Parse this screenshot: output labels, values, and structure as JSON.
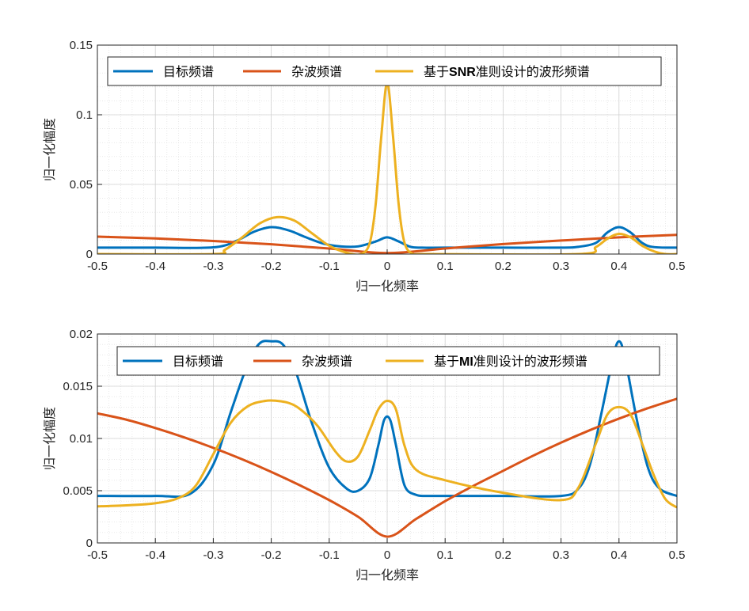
{
  "chart_data": [
    {
      "type": "line",
      "xlabel": "归一化频率",
      "ylabel": "归一化幅度",
      "xlim": [
        -0.5,
        0.5
      ],
      "ylim": [
        0,
        0.15
      ],
      "xticks": [
        "-0.5",
        "-0.4",
        "-0.3",
        "-0.2",
        "-0.1",
        "0",
        "0.1",
        "0.2",
        "0.3",
        "0.4",
        "0.5"
      ],
      "yticks": [
        "0",
        "0.05",
        "0.1",
        "0.15"
      ],
      "grid": true,
      "legend_position": "top",
      "series": [
        {
          "name": "目标频谱",
          "color": "#0072BD",
          "x": [
            -0.5,
            -0.4,
            -0.3,
            -0.26,
            -0.23,
            -0.2,
            -0.17,
            -0.14,
            -0.11,
            -0.08,
            -0.05,
            -0.02,
            0.0,
            0.02,
            0.04,
            0.06,
            0.1,
            0.2,
            0.3,
            0.33,
            0.36,
            0.38,
            0.4,
            0.42,
            0.44,
            0.46,
            0.5
          ],
          "y": [
            0.0046,
            0.0046,
            0.0048,
            0.0095,
            0.016,
            0.0193,
            0.017,
            0.012,
            0.0075,
            0.0055,
            0.0055,
            0.009,
            0.012,
            0.009,
            0.0052,
            0.0046,
            0.0046,
            0.0046,
            0.0046,
            0.0052,
            0.008,
            0.0155,
            0.0193,
            0.0155,
            0.008,
            0.005,
            0.0046
          ]
        },
        {
          "name": "杂波频谱",
          "color": "#D95319",
          "x": [
            -0.5,
            -0.4,
            -0.3,
            -0.2,
            -0.1,
            0.0,
            0.1,
            0.2,
            0.3,
            0.4,
            0.5
          ],
          "y": [
            0.0125,
            0.0112,
            0.0094,
            0.007,
            0.004,
            0.0007,
            0.004,
            0.0072,
            0.0097,
            0.012,
            0.0138
          ]
        },
        {
          "name": "基于SNR准则设计的波形频谱",
          "label_prefix": "基于",
          "label_bold": "SNR",
          "label_suffix": "准则设计的波形频谱",
          "color": "#EDB120",
          "x": [
            -0.5,
            -0.3,
            -0.28,
            -0.25,
            -0.22,
            -0.19,
            -0.16,
            -0.13,
            -0.1,
            -0.07,
            -0.045,
            -0.03,
            -0.02,
            -0.01,
            0.0,
            0.01,
            0.02,
            0.03,
            0.045,
            0.07,
            0.33,
            0.36,
            0.38,
            0.4,
            0.42,
            0.44,
            0.46,
            0.48,
            0.5
          ],
          "y": [
            0.0,
            0.0,
            0.003,
            0.012,
            0.022,
            0.0265,
            0.024,
            0.015,
            0.006,
            0.001,
            0.0,
            0.008,
            0.035,
            0.085,
            0.123,
            0.085,
            0.035,
            0.008,
            0.0,
            0.0,
            0.0,
            0.005,
            0.011,
            0.0145,
            0.012,
            0.006,
            0.002,
            0.0,
            0.0
          ]
        }
      ]
    },
    {
      "type": "line",
      "xlabel": "归一化频率",
      "ylabel": "归一化幅度",
      "xlim": [
        -0.5,
        0.5
      ],
      "ylim": [
        0,
        0.02
      ],
      "xticks": [
        "-0.5",
        "-0.4",
        "-0.3",
        "-0.2",
        "-0.1",
        "0",
        "0.1",
        "0.2",
        "0.3",
        "0.4",
        "0.5"
      ],
      "yticks": [
        "0",
        "0.005",
        "0.01",
        "0.015",
        "0.02"
      ],
      "grid": true,
      "legend_position": "top",
      "series": [
        {
          "name": "目标频谱",
          "color": "#0072BD",
          "x": [
            -0.5,
            -0.4,
            -0.34,
            -0.3,
            -0.27,
            -0.24,
            -0.22,
            -0.2,
            -0.18,
            -0.16,
            -0.13,
            -0.1,
            -0.07,
            -0.05,
            -0.03,
            -0.015,
            -0.005,
            0.005,
            0.015,
            0.03,
            0.05,
            0.07,
            0.1,
            0.2,
            0.3,
            0.33,
            0.35,
            0.37,
            0.39,
            0.4,
            0.41,
            0.43,
            0.45,
            0.47,
            0.5
          ],
          "y": [
            0.0045,
            0.0045,
            0.0047,
            0.0075,
            0.0125,
            0.0172,
            0.0191,
            0.0193,
            0.019,
            0.0168,
            0.0115,
            0.0072,
            0.0052,
            0.005,
            0.0062,
            0.0094,
            0.0118,
            0.0118,
            0.0094,
            0.0055,
            0.0046,
            0.0045,
            0.0045,
            0.0045,
            0.0045,
            0.0052,
            0.0075,
            0.0125,
            0.0178,
            0.0193,
            0.0178,
            0.012,
            0.0072,
            0.0052,
            0.0045
          ]
        },
        {
          "name": "杂波频谱",
          "color": "#D95319",
          "x": [
            -0.5,
            -0.45,
            -0.4,
            -0.35,
            -0.3,
            -0.25,
            -0.2,
            -0.15,
            -0.1,
            -0.05,
            0.0,
            0.05,
            0.1,
            0.15,
            0.2,
            0.25,
            0.3,
            0.35,
            0.4,
            0.45,
            0.5
          ],
          "y": [
            0.0124,
            0.0118,
            0.011,
            0.0101,
            0.0091,
            0.008,
            0.0068,
            0.0055,
            0.0041,
            0.0025,
            0.0006,
            0.0023,
            0.004,
            0.0055,
            0.0069,
            0.0083,
            0.0096,
            0.0108,
            0.0119,
            0.0129,
            0.0138
          ]
        },
        {
          "name": "基于MI准则设计的波形频谱",
          "label_prefix": "基于",
          "label_bold": "MI",
          "label_suffix": "准则设计的波形频谱",
          "color": "#EDB120",
          "x": [
            -0.5,
            -0.45,
            -0.4,
            -0.36,
            -0.33,
            -0.3,
            -0.27,
            -0.24,
            -0.21,
            -0.19,
            -0.17,
            -0.15,
            -0.12,
            -0.09,
            -0.07,
            -0.05,
            -0.03,
            -0.015,
            0.0,
            0.015,
            0.03,
            0.05,
            0.1,
            0.2,
            0.3,
            0.33,
            0.36,
            0.38,
            0.4,
            0.42,
            0.44,
            0.46,
            0.48,
            0.5
          ],
          "y": [
            0.0035,
            0.0036,
            0.0038,
            0.0043,
            0.0055,
            0.0085,
            0.0115,
            0.0131,
            0.0136,
            0.0136,
            0.0134,
            0.0128,
            0.0112,
            0.0088,
            0.0078,
            0.0083,
            0.0108,
            0.0128,
            0.0136,
            0.0128,
            0.0093,
            0.007,
            0.006,
            0.0048,
            0.0041,
            0.0053,
            0.0095,
            0.0123,
            0.013,
            0.0123,
            0.0095,
            0.0065,
            0.0042,
            0.0034
          ]
        }
      ]
    }
  ]
}
